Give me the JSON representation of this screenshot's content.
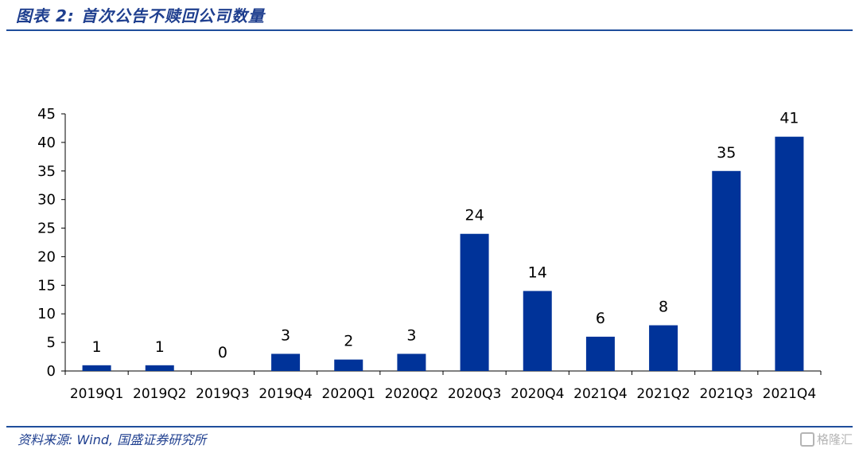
{
  "header": {
    "title": "图表 2:  首次公告不赎回公司数量"
  },
  "footer": {
    "source": "资料来源: Wind, 国盛证券研究所",
    "watermark": "格隆汇"
  },
  "chart_data": {
    "type": "bar",
    "title": "",
    "xlabel": "",
    "ylabel": "",
    "categories": [
      "2019Q1",
      "2019Q2",
      "2019Q3",
      "2019Q4",
      "2020Q1",
      "2020Q2",
      "2020Q3",
      "2020Q4",
      "2021Q4",
      "2021Q2",
      "2021Q3",
      "2021Q4"
    ],
    "values": [
      1,
      1,
      0,
      3,
      2,
      3,
      24,
      14,
      6,
      8,
      35,
      41
    ],
    "data_labels": [
      "1",
      "1",
      "0",
      "3",
      "2",
      "3",
      "24",
      "14",
      "6",
      "8",
      "35",
      "41"
    ],
    "ylim": [
      0,
      45
    ],
    "yticks": [
      0,
      5,
      10,
      15,
      20,
      25,
      30,
      35,
      40,
      45
    ],
    "grid": false,
    "legend": "none",
    "bar_color": "#003399"
  }
}
